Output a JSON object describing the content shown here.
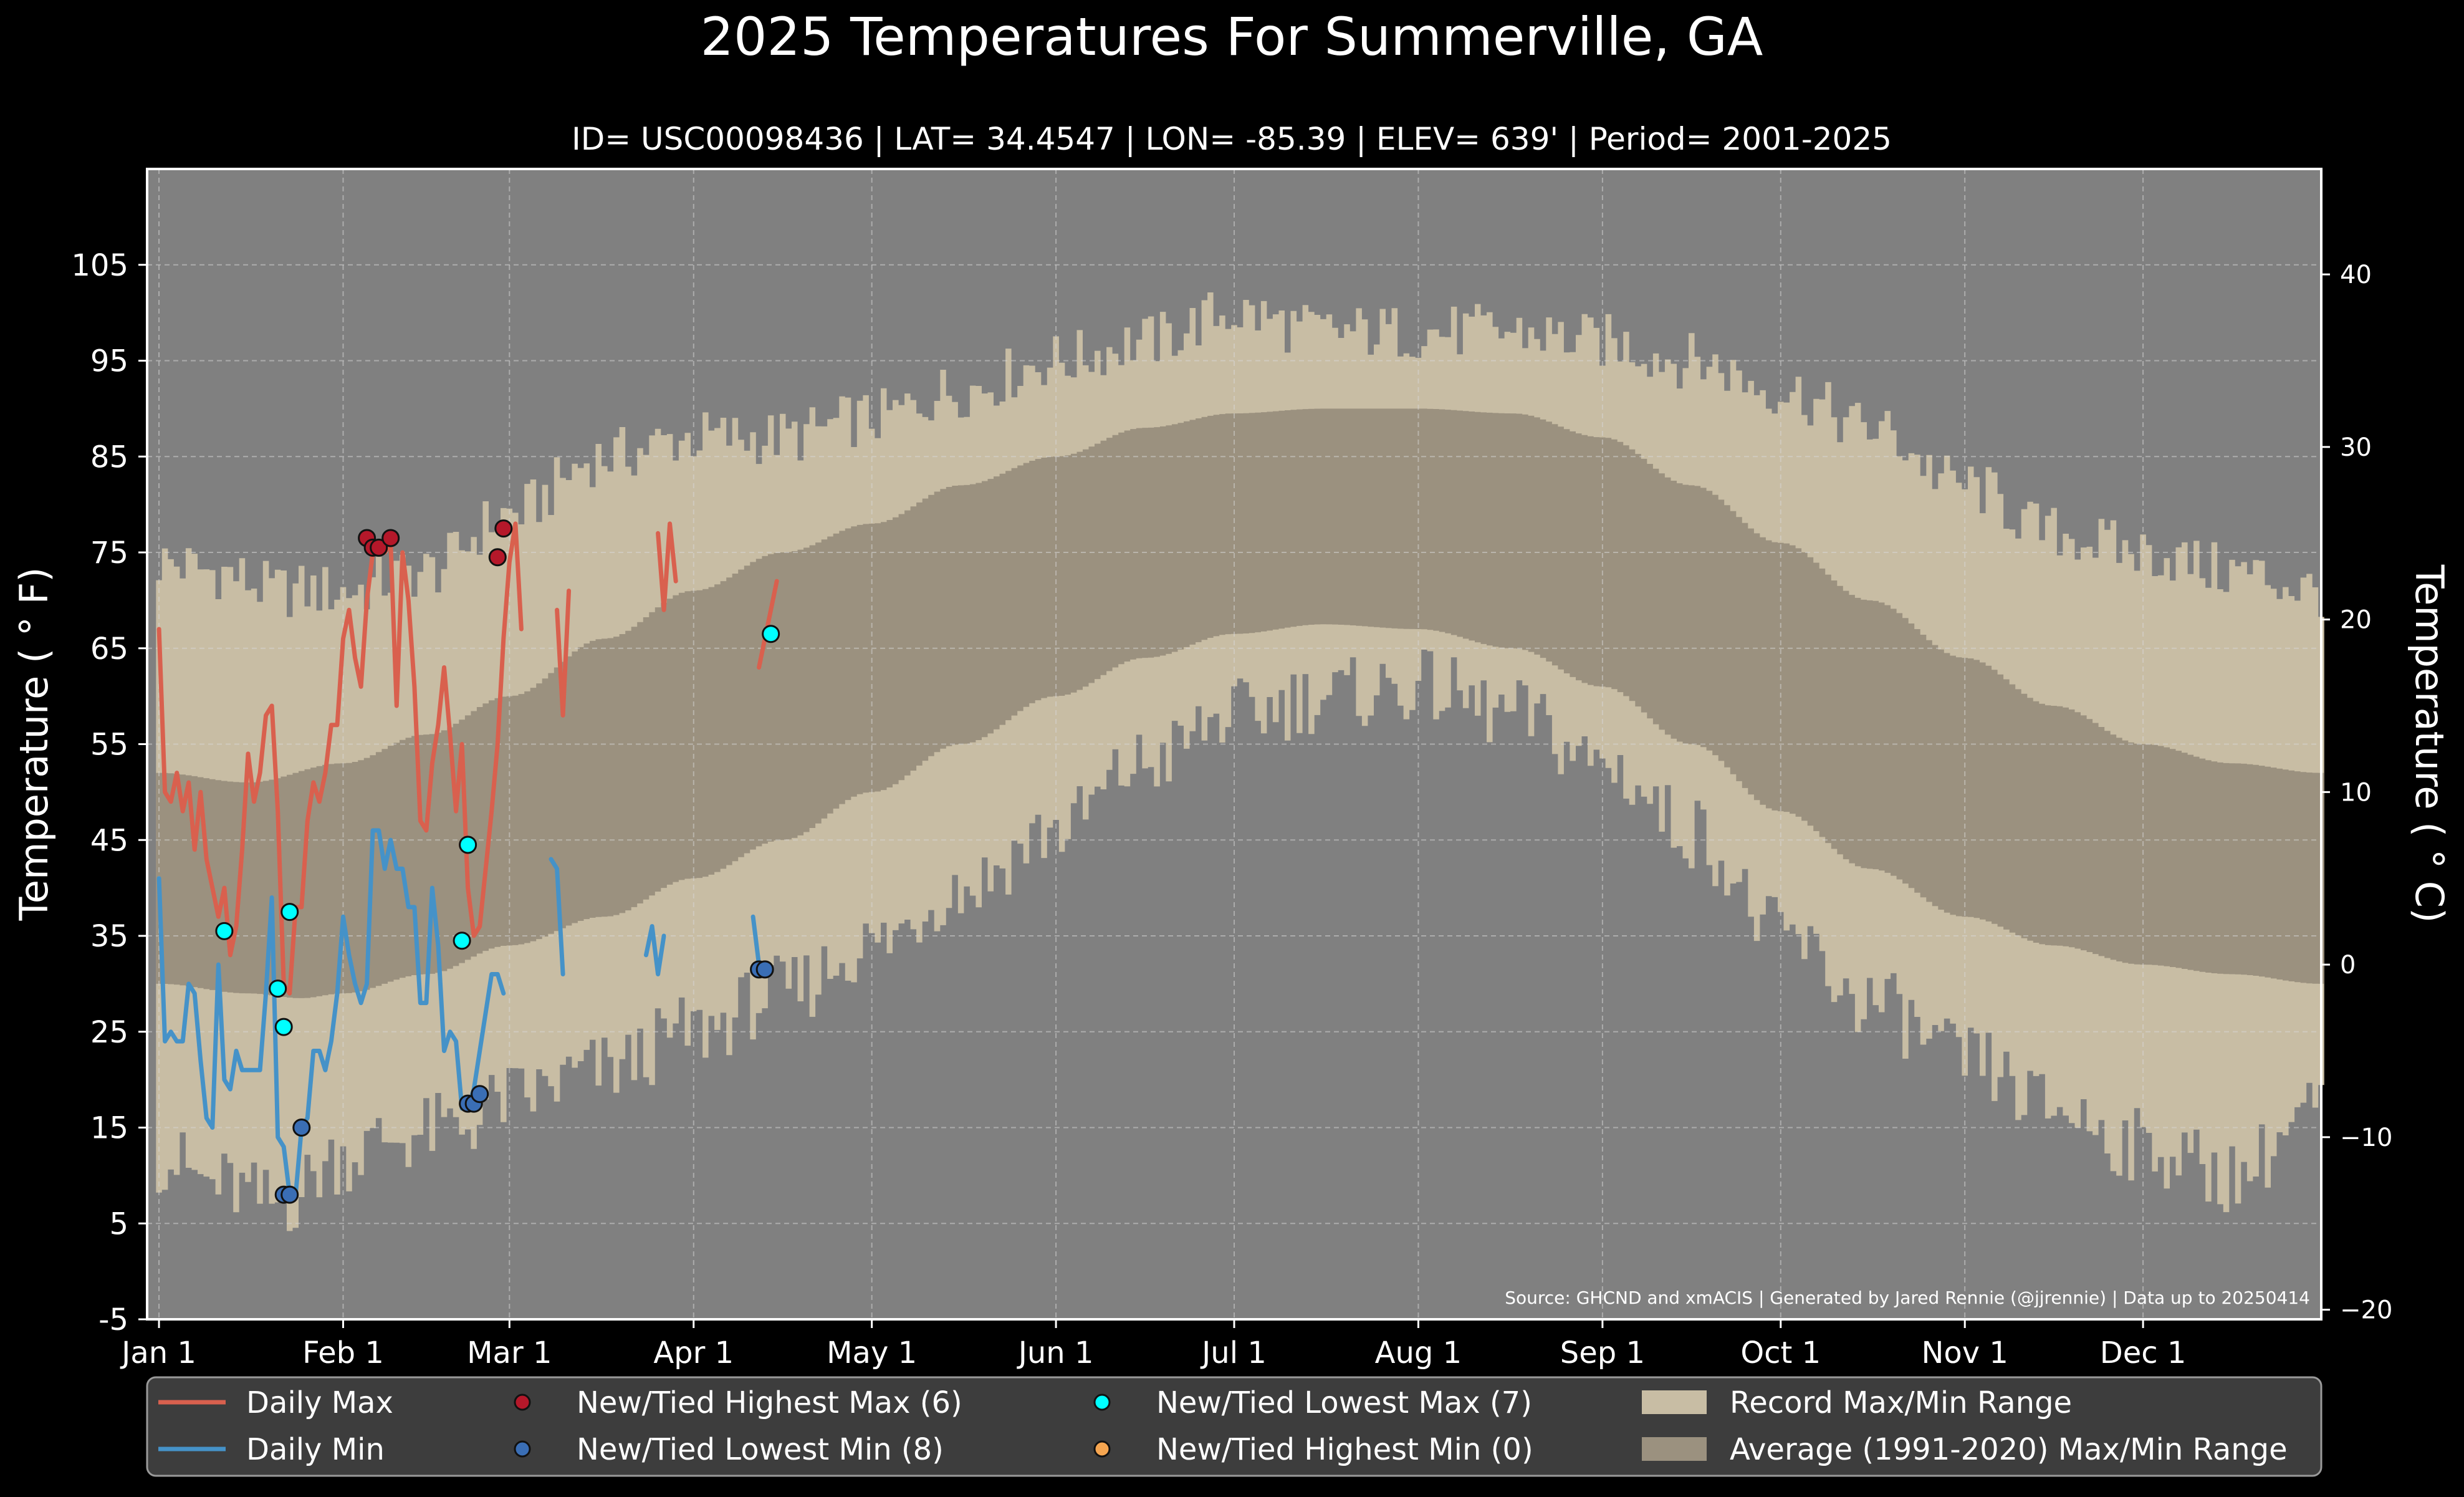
{
  "chart_data": {
    "type": "line",
    "title": "2025 Temperatures For Summerville, GA",
    "subtitle": "ID= USC00098436 | LAT= 34.4547 | LON= -85.39 | ELEV= 639' | Period= 2001-2025",
    "ylabel_left": "Temperature ($^\\circ$F)",
    "ylabel_left_display": "Temperature ( ° F)",
    "ylabel_right_display": "Temperature ( ° C)",
    "ylim_f": [
      -5,
      115
    ],
    "yticks_f": [
      -5,
      5,
      15,
      25,
      35,
      45,
      55,
      65,
      75,
      85,
      95,
      105
    ],
    "yticks_c": [
      -20,
      -10,
      0,
      10,
      20,
      30,
      40
    ],
    "xlim_day": [
      -2,
      364
    ],
    "x_ticks": [
      {
        "day": 0,
        "label": "Jan 1"
      },
      {
        "day": 31,
        "label": "Feb 1"
      },
      {
        "day": 59,
        "label": "Mar 1"
      },
      {
        "day": 90,
        "label": "Apr 1"
      },
      {
        "day": 120,
        "label": "May 1"
      },
      {
        "day": 151,
        "label": "Jun 1"
      },
      {
        "day": 181,
        "label": "Jul 1"
      },
      {
        "day": 212,
        "label": "Aug 1"
      },
      {
        "day": 243,
        "label": "Sep 1"
      },
      {
        "day": 273,
        "label": "Oct 1"
      },
      {
        "day": 304,
        "label": "Nov 1"
      },
      {
        "day": 334,
        "label": "Dec 1"
      }
    ],
    "grid": true,
    "legend_position": "bottom",
    "source": "Source: GHCND and xmACIS | Generated by Jared Rennie (@jjrennie) | Data up to 20250414",
    "colors": {
      "background": "#000000",
      "plot_bg": "#808080",
      "record_range": "#c8bda4",
      "normal_range": "#9b917f",
      "daily_max": "#d9604e",
      "daily_min": "#4592c8",
      "highest_max": "#b5182a",
      "lowest_min": "#3a6eb5",
      "lowest_max": "#00ffff",
      "highest_min": "#f5a550"
    },
    "record_max_anchors": [
      [
        0,
        74
      ],
      [
        10,
        73
      ],
      [
        20,
        71
      ],
      [
        31,
        71
      ],
      [
        45,
        73
      ],
      [
        59,
        79
      ],
      [
        75,
        85
      ],
      [
        90,
        87
      ],
      [
        105,
        87
      ],
      [
        120,
        89
      ],
      [
        135,
        92
      ],
      [
        151,
        95
      ],
      [
        166,
        97
      ],
      [
        181,
        100
      ],
      [
        196,
        98
      ],
      [
        212,
        98
      ],
      [
        228,
        98
      ],
      [
        243,
        97
      ],
      [
        258,
        95
      ],
      [
        273,
        92
      ],
      [
        288,
        88
      ],
      [
        304,
        82
      ],
      [
        319,
        77
      ],
      [
        334,
        75
      ],
      [
        349,
        73
      ],
      [
        364,
        71
      ]
    ],
    "record_min_anchors": [
      [
        0,
        12
      ],
      [
        10,
        9
      ],
      [
        20,
        7
      ],
      [
        31,
        12
      ],
      [
        40,
        14
      ],
      [
        50,
        15
      ],
      [
        59,
        18
      ],
      [
        75,
        21
      ],
      [
        90,
        25
      ],
      [
        105,
        29
      ],
      [
        120,
        34
      ],
      [
        135,
        40
      ],
      [
        151,
        46
      ],
      [
        166,
        53
      ],
      [
        181,
        58
      ],
      [
        196,
        60
      ],
      [
        212,
        61
      ],
      [
        228,
        58
      ],
      [
        243,
        53
      ],
      [
        258,
        46
      ],
      [
        273,
        35
      ],
      [
        288,
        28
      ],
      [
        304,
        22
      ],
      [
        319,
        17
      ],
      [
        334,
        13
      ],
      [
        349,
        10
      ],
      [
        364,
        17
      ]
    ],
    "normal_max_anchors": [
      [
        0,
        52
      ],
      [
        15,
        51
      ],
      [
        31,
        53
      ],
      [
        45,
        56
      ],
      [
        59,
        60
      ],
      [
        75,
        66
      ],
      [
        90,
        71
      ],
      [
        105,
        75
      ],
      [
        120,
        78
      ],
      [
        135,
        82
      ],
      [
        151,
        85
      ],
      [
        166,
        88
      ],
      [
        181,
        89.5
      ],
      [
        196,
        90
      ],
      [
        212,
        90
      ],
      [
        228,
        89.5
      ],
      [
        243,
        87
      ],
      [
        258,
        82
      ],
      [
        273,
        76
      ],
      [
        288,
        70
      ],
      [
        304,
        64
      ],
      [
        319,
        59
      ],
      [
        334,
        55
      ],
      [
        349,
        53
      ],
      [
        364,
        52
      ]
    ],
    "normal_min_anchors": [
      [
        0,
        30
      ],
      [
        15,
        29
      ],
      [
        24,
        28.5
      ],
      [
        31,
        29
      ],
      [
        45,
        31
      ],
      [
        59,
        34
      ],
      [
        75,
        37
      ],
      [
        90,
        41
      ],
      [
        105,
        45
      ],
      [
        120,
        50
      ],
      [
        135,
        55
      ],
      [
        151,
        60
      ],
      [
        166,
        64
      ],
      [
        181,
        66.5
      ],
      [
        196,
        67.5
      ],
      [
        212,
        67
      ],
      [
        228,
        65
      ],
      [
        243,
        61
      ],
      [
        258,
        55
      ],
      [
        273,
        48
      ],
      [
        288,
        42
      ],
      [
        304,
        37
      ],
      [
        319,
        34
      ],
      [
        334,
        32
      ],
      [
        349,
        31
      ],
      [
        364,
        30
      ]
    ],
    "series": [
      {
        "name": "Daily Max",
        "color": "#d9604e",
        "segments": [
          [
            [
              0,
              67
            ],
            [
              1,
              50
            ],
            [
              2,
              49
            ],
            [
              3,
              52
            ],
            [
              4,
              48
            ],
            [
              5,
              51
            ],
            [
              6,
              44
            ],
            [
              7,
              50
            ],
            [
              8,
              43
            ],
            [
              9,
              40
            ],
            [
              10,
              37
            ],
            [
              11,
              40
            ],
            [
              12,
              33
            ],
            [
              13,
              36
            ],
            [
              14,
              44
            ],
            [
              15,
              54
            ],
            [
              16,
              49
            ],
            [
              17,
              52
            ],
            [
              18,
              58
            ],
            [
              19,
              59
            ],
            [
              20,
              48
            ],
            [
              21,
              30
            ],
            [
              22,
              29
            ],
            [
              23,
              38
            ],
            [
              24,
              38
            ],
            [
              25,
              47
            ],
            [
              26,
              51
            ],
            [
              27,
              49
            ],
            [
              28,
              52
            ],
            [
              29,
              57
            ],
            [
              30,
              57
            ],
            [
              31,
              66
            ],
            [
              32,
              69
            ],
            [
              33,
              64
            ],
            [
              34,
              61
            ],
            [
              35,
              70
            ],
            [
              36,
              75
            ],
            [
              37,
              76
            ],
            [
              38,
              75
            ],
            [
              39,
              76
            ],
            [
              40,
              59
            ],
            [
              41,
              75
            ],
            [
              42,
              70
            ],
            [
              43,
              61
            ],
            [
              44,
              47
            ],
            [
              45,
              46
            ],
            [
              46,
              53
            ],
            [
              47,
              57
            ],
            [
              48,
              63
            ],
            [
              49,
              56
            ],
            [
              50,
              48
            ],
            [
              51,
              55
            ],
            [
              52,
              40
            ],
            [
              53,
              35
            ],
            [
              54,
              36
            ],
            [
              55,
              42
            ],
            [
              56,
              48
            ],
            [
              57,
              55
            ],
            [
              58,
              66
            ],
            [
              59,
              74
            ],
            [
              60,
              78
            ],
            [
              61,
              67
            ]
          ],
          [
            [
              67,
              69
            ],
            [
              68,
              58
            ],
            [
              69,
              71
            ]
          ],
          [
            [
              84,
              77
            ],
            [
              85,
              69
            ],
            [
              86,
              78
            ],
            [
              87,
              72
            ]
          ],
          [
            [
              101,
              63
            ],
            [
              102,
              66
            ],
            [
              103,
              69
            ],
            [
              104,
              72
            ]
          ]
        ]
      },
      {
        "name": "Daily Min",
        "color": "#4592c8",
        "segments": [
          [
            [
              0,
              41
            ],
            [
              1,
              24
            ],
            [
              2,
              25
            ],
            [
              3,
              24
            ],
            [
              4,
              24
            ],
            [
              5,
              30
            ],
            [
              6,
              29
            ],
            [
              7,
              22
            ],
            [
              8,
              16
            ],
            [
              9,
              15
            ],
            [
              10,
              32
            ],
            [
              11,
              20
            ],
            [
              12,
              19
            ],
            [
              13,
              23
            ],
            [
              14,
              21
            ],
            [
              15,
              21
            ],
            [
              16,
              21
            ],
            [
              17,
              21
            ],
            [
              18,
              29
            ],
            [
              19,
              39
            ],
            [
              20,
              14
            ],
            [
              21,
              13
            ],
            [
              22,
              8
            ],
            [
              23,
              8
            ],
            [
              24,
              15
            ],
            [
              25,
              16
            ],
            [
              26,
              23
            ],
            [
              27,
              23
            ],
            [
              28,
              21
            ],
            [
              29,
              24
            ],
            [
              30,
              29
            ],
            [
              31,
              37
            ],
            [
              32,
              33
            ],
            [
              33,
              30
            ],
            [
              34,
              28
            ],
            [
              35,
              30
            ],
            [
              36,
              46
            ],
            [
              37,
              46
            ],
            [
              38,
              42
            ],
            [
              39,
              45
            ],
            [
              40,
              42
            ],
            [
              41,
              42
            ],
            [
              42,
              38
            ],
            [
              43,
              38
            ],
            [
              44,
              28
            ],
            [
              45,
              28
            ],
            [
              46,
              40
            ],
            [
              47,
              34
            ],
            [
              48,
              23
            ],
            [
              49,
              25
            ],
            [
              50,
              24
            ],
            [
              51,
              17
            ],
            [
              52,
              17
            ],
            [
              53,
              19
            ],
            [
              54,
              23
            ],
            [
              55,
              27
            ],
            [
              56,
              31
            ],
            [
              57,
              31
            ],
            [
              58,
              29
            ]
          ],
          [
            [
              66,
              43
            ],
            [
              67,
              42
            ],
            [
              68,
              31
            ]
          ],
          [
            [
              82,
              33
            ],
            [
              83,
              36
            ],
            [
              84,
              31
            ],
            [
              85,
              35
            ]
          ],
          [
            [
              100,
              37
            ],
            [
              101,
              32
            ],
            [
              102,
              32
            ]
          ]
        ]
      }
    ],
    "markers": {
      "highest_max": [
        [
          35,
          76.5
        ],
        [
          36,
          75.5
        ],
        [
          37,
          75.5
        ],
        [
          39,
          76.5
        ],
        [
          57,
          74.5
        ],
        [
          58,
          77.5
        ]
      ],
      "lowest_min": [
        [
          21,
          8
        ],
        [
          22,
          8
        ],
        [
          24,
          15
        ],
        [
          52,
          17.5
        ],
        [
          53,
          17.5
        ],
        [
          54,
          18.5
        ],
        [
          101,
          31.5
        ],
        [
          102,
          31.5
        ]
      ],
      "lowest_max": [
        [
          11,
          35.5
        ],
        [
          20,
          29.5
        ],
        [
          21,
          25.5
        ],
        [
          22,
          37.5
        ],
        [
          51,
          34.5
        ],
        [
          52,
          44.5
        ],
        [
          103,
          66.5
        ]
      ],
      "highest_min": []
    },
    "legend": [
      {
        "label": "Daily Max",
        "kind": "line",
        "color": "#d9604e"
      },
      {
        "label": "Daily Min",
        "kind": "line",
        "color": "#4592c8"
      },
      {
        "label": "New/Tied Highest Max (6)",
        "kind": "dot",
        "color": "#b5182a"
      },
      {
        "label": "New/Tied Lowest Min (8)",
        "kind": "dot",
        "color": "#3a6eb5"
      },
      {
        "label": "New/Tied Lowest Max (7)",
        "kind": "dot",
        "color": "#00ffff"
      },
      {
        "label": "New/Tied Highest Min (0)",
        "kind": "dot",
        "color": "#f5a550"
      },
      {
        "label": "Record Max/Min Range",
        "kind": "patch",
        "color": "#c8bda4"
      },
      {
        "label": "Average (1991-2020) Max/Min Range",
        "kind": "patch",
        "color": "#9b917f"
      }
    ]
  }
}
